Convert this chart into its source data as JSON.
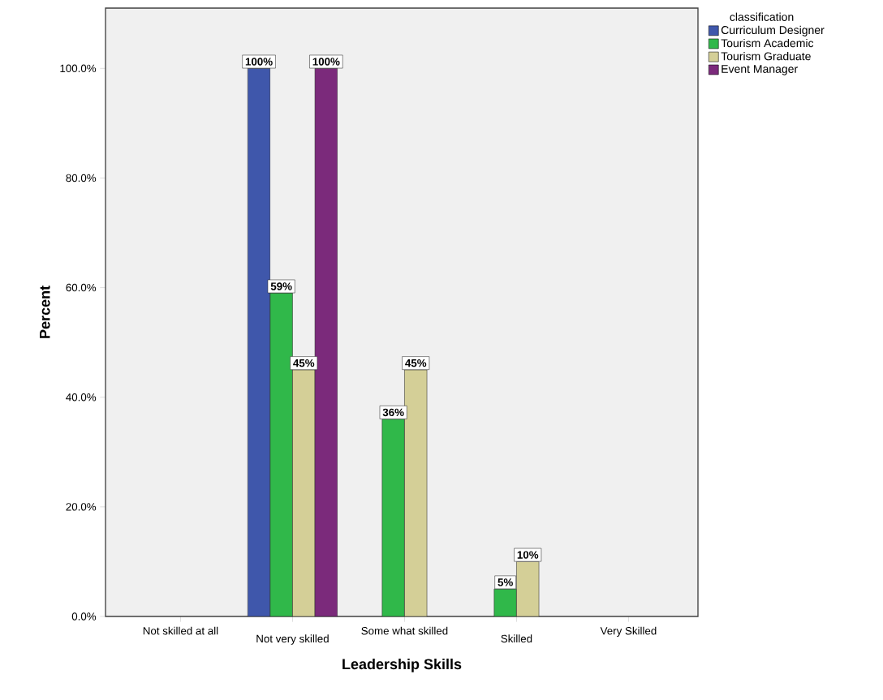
{
  "chart_data": {
    "type": "bar",
    "xlabel": "Leadership Skills",
    "ylabel": "Percent",
    "legend_title": "classification",
    "legend": "top right",
    "categories": [
      "Not skilled at all",
      "Not very skilled",
      "Some what skilled",
      "Skilled",
      "Very Skilled"
    ],
    "series": [
      {
        "name": "Curriculum Designer",
        "color": "#3f57ab",
        "values": [
          null,
          100,
          null,
          null,
          null
        ],
        "value_labels": [
          null,
          "100%",
          null,
          null,
          null
        ]
      },
      {
        "name": "Tourism Academic",
        "color": "#30b84a",
        "values": [
          null,
          59,
          36,
          5,
          null
        ],
        "value_labels": [
          null,
          "59%",
          "36%",
          "5%",
          null
        ]
      },
      {
        "name": "Tourism Graduate",
        "color": "#d4cf97",
        "values": [
          null,
          45,
          45,
          10,
          null
        ],
        "value_labels": [
          null,
          "45%",
          "45%",
          "10%",
          null
        ]
      },
      {
        "name": "Event Manager",
        "color": "#7b2a7b",
        "values": [
          null,
          100,
          null,
          null,
          null
        ],
        "value_labels": [
          null,
          "100%",
          null,
          null,
          null
        ]
      }
    ],
    "ylim": [
      0,
      111
    ],
    "yticks": [
      {
        "value": 0,
        "label": "0.0%"
      },
      {
        "value": 20,
        "label": "20.0%"
      },
      {
        "value": 40,
        "label": "40.0%"
      },
      {
        "value": 60,
        "label": "60.0%"
      },
      {
        "value": 80,
        "label": "80.0%"
      },
      {
        "value": 100,
        "label": "100.0%"
      }
    ]
  }
}
